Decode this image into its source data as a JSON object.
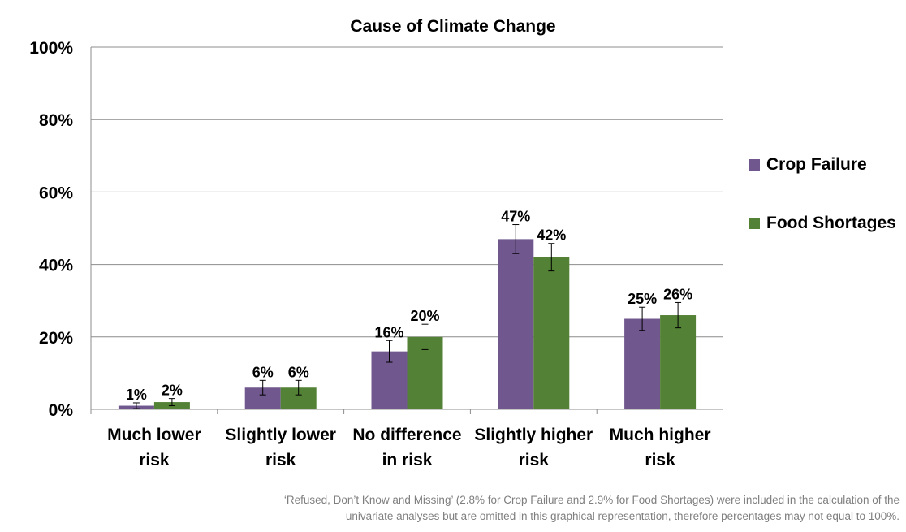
{
  "chart_data": {
    "type": "bar",
    "title": "Cause of Climate Change",
    "xlabel": "",
    "ylabel": "",
    "ylim": [
      0,
      100
    ],
    "yticks": [
      "0%",
      "20%",
      "40%",
      "60%",
      "80%",
      "100%"
    ],
    "ytick_values": [
      0,
      20,
      40,
      60,
      80,
      100
    ],
    "categories": [
      [
        "Much lower",
        "risk"
      ],
      [
        "Slightly lower",
        "risk"
      ],
      [
        "No difference",
        "in risk"
      ],
      [
        "Slightly higher",
        "risk"
      ],
      [
        "Much higher",
        "risk"
      ]
    ],
    "series": [
      {
        "name": "Crop Failure",
        "color": "#70588e",
        "values": [
          1,
          6,
          16,
          47,
          25
        ],
        "labels": [
          "1%",
          "6%",
          "16%",
          "47%",
          "25%"
        ],
        "error": [
          0.8,
          2,
          3,
          4,
          3.2
        ]
      },
      {
        "name": "Food Shortages",
        "color": "#538135",
        "values": [
          2,
          6,
          20,
          42,
          26
        ],
        "labels": [
          "2%",
          "6%",
          "20%",
          "42%",
          "26%"
        ],
        "error": [
          1,
          2,
          3.5,
          3.8,
          3.5
        ]
      }
    ],
    "grid": true,
    "legend": "right"
  },
  "footnote": {
    "line1": "‘Refused, Don’t Know and Missing’ (2.8% for Crop Failure and 2.9% for Food Shortages) were included in the calculation of the",
    "line2": "univariate analyses but are omitted in this graphical representation, therefore percentages may not equal to 100%."
  }
}
